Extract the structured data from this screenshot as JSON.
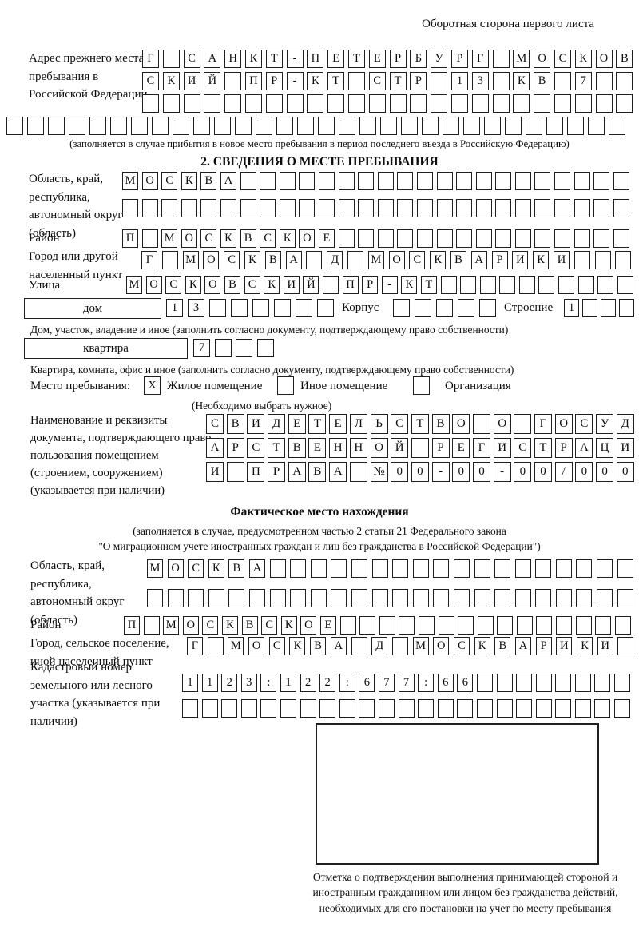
{
  "page": {
    "side_note": "Оборотная сторона первого листа"
  },
  "prev_address": {
    "label": "Адрес прежнего места пребывания в Российской Федерации",
    "rows": [
      {
        "chars": "Г САНКТ-ПЕТЕРБУРГ МОСКОВ",
        "pad_to": 24
      },
      {
        "chars": "СКИЙ ПР-КТ СТР 13 КВ 7",
        "pad_to": 24
      },
      {
        "blank": 24
      },
      {
        "blank": 30
      }
    ],
    "note": "(заполняется в случае прибытия в новое место пребывания в период последнего въезда в Российскую Федерацию)"
  },
  "section2": {
    "title": "2. СВЕДЕНИЯ О МЕСТЕ ПРЕБЫВАНИЯ",
    "region": {
      "label": "Область, край, республика, автономный округ (область)",
      "rows": [
        {
          "chars": "МОСКВА",
          "pad_to": 26
        },
        {
          "blank": 26
        }
      ]
    },
    "district": {
      "label": "Район",
      "row": {
        "chars": "П МОСКВСКОЕ",
        "pad_to": 26
      }
    },
    "city": {
      "label": "Город или другой населенный пункт",
      "row": {
        "chars": "Г МОСКВА Д МОСКВАРИКИ",
        "pad_to": 24
      }
    },
    "street": {
      "label": "Улица",
      "row": {
        "chars": "МОСКОВСКИЙ ПР-КТ",
        "pad_to": 26
      }
    },
    "house": {
      "box_label": "дом",
      "cells": {
        "chars": "13",
        "pad_to": 8
      },
      "korpus_label": "Корпус",
      "korpus_cells": {
        "blank": 5
      },
      "stroenie_label": "Строение",
      "stroenie_cells": {
        "chars": "1",
        "pad_to": 4
      },
      "note": "Дом, участок, владение и иное (заполнить согласно документу, подтверждающему право собственности)"
    },
    "apartment": {
      "box_label": "квартира",
      "cells": {
        "chars": "7",
        "pad_to": 4
      },
      "note": "Квартира, комната, офис и иное (заполнить согласно документу, подтверждающему право собственности)"
    },
    "stay_type": {
      "label": "Место пребывания:",
      "options": [
        {
          "label": "Жилое помещение",
          "mark": "X"
        },
        {
          "label": "Иное помещение",
          "mark": ""
        },
        {
          "label": "Организация",
          "mark": ""
        }
      ],
      "note": "(Необходимо выбрать нужное)"
    },
    "document": {
      "label": "Наименование и реквизиты документа, подтверждающего право пользования помещением (строением, сооружением) (указывается при наличии)",
      "rows": [
        {
          "chars": "СВИДЕТЕЛЬСТВО О ГОСУД",
          "pad_to": 21
        },
        {
          "chars": "АРСТВЕННОЙ РЕГИСТРАЦИ",
          "pad_to": 21
        },
        {
          "chars": "И ПРАВА №00-00-00/000",
          "pad_to": 21
        }
      ]
    }
  },
  "actual": {
    "title": "Фактическое место нахождения",
    "note_line1": "(заполняется в случае, предусмотренном частью 2 статьи 21 Федерального закона",
    "note_line2": "\"О миграционном учете иностранных граждан и лиц без гражданства в Российской Федерации\")",
    "region": {
      "label": "Область, край, республика, автономный округ (область)",
      "rows": [
        {
          "chars": "МОСКВА",
          "pad_to": 24
        },
        {
          "blank": 24
        }
      ]
    },
    "district": {
      "label": "Район",
      "row": {
        "chars": "П МОСКВСКОЕ",
        "pad_to": 26
      }
    },
    "city": {
      "label": "Город, сельское поселение, иной населенный пункт",
      "row": {
        "chars": "Г МОСКВА Д МОСКВАРИКИ",
        "pad_to": 22
      }
    },
    "cadastral": {
      "label": "Кадастровый номер земельного или лесного участка (указывается при наличии)",
      "rows": [
        {
          "chars": "1123:122:677:66",
          "pad_to": 23
        },
        {
          "blank": 23
        }
      ]
    },
    "stamp_note": "Отметка о подтверждении выполнения принимающей стороной и иностранным гражданином или лицом без гражданства действий, необходимых для его постановки на учет по месту пребывания"
  }
}
